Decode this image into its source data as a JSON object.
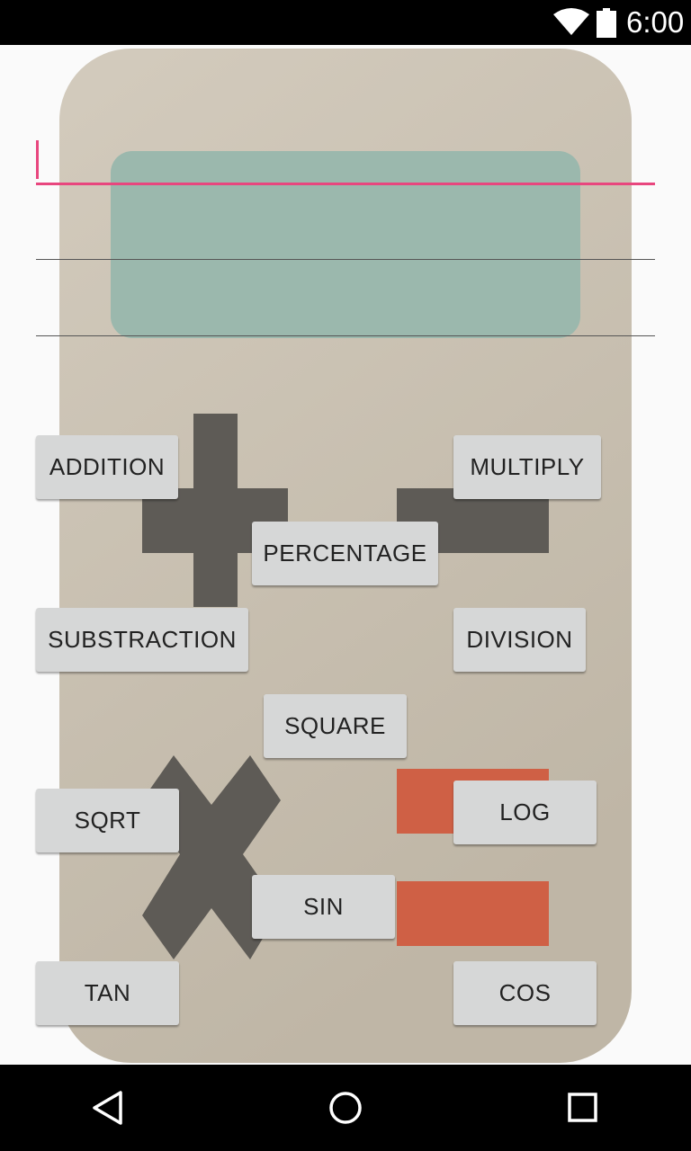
{
  "status_bar": {
    "time": "6:00"
  },
  "display": {
    "input_line_1": "",
    "input_line_2": "",
    "input_line_3": ""
  },
  "buttons": {
    "addition": "ADDITION",
    "multiply": "MULTIPLY",
    "percentage": "PERCENTAGE",
    "substraction": "SUBSTRACTION",
    "division": "DIVISION",
    "square": "SQUARE",
    "sqrt": "SQRT",
    "log": "LOG",
    "sin": "SIN",
    "tan": "TAN",
    "cos": "COS"
  },
  "colors": {
    "accent": "#e8467e",
    "calculator_body": "#c9c0b0",
    "screen": "#9bb8ad",
    "symbol": "#5e5b56",
    "equals": "#cf6045",
    "button": "#d6d7d7"
  },
  "nav_bar": {
    "icons": [
      "back-icon",
      "home-icon",
      "recents-icon"
    ]
  }
}
